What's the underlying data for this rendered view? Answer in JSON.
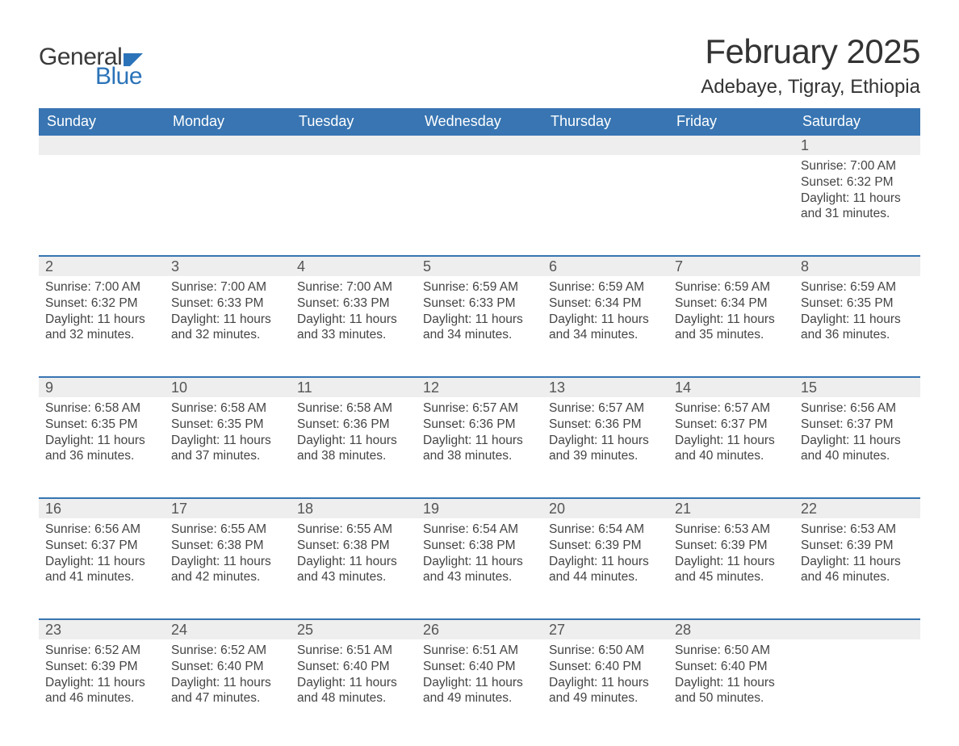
{
  "brand": {
    "word1": "General",
    "word2": "Blue",
    "shape_color": "#2b73b9",
    "text_color_dark": "#3a3a3a",
    "text_color_blue": "#2b73b9"
  },
  "title": {
    "month": "February 2025",
    "location": "Adebaye, Tigray, Ethiopia",
    "month_fontsize": 42,
    "location_fontsize": 24
  },
  "colors": {
    "header_bg": "#3875b2",
    "header_text": "#ffffff",
    "daynum_bg": "#eeeeee",
    "border": "#3875b2",
    "body_text": "#444444"
  },
  "weekdays": [
    "Sunday",
    "Monday",
    "Tuesday",
    "Wednesday",
    "Thursday",
    "Friday",
    "Saturday"
  ],
  "weeks": [
    [
      null,
      null,
      null,
      null,
      null,
      null,
      {
        "n": "1",
        "sr": "Sunrise: 7:00 AM",
        "ss": "Sunset: 6:32 PM",
        "dl": "Daylight: 11 hours and 31 minutes."
      }
    ],
    [
      {
        "n": "2",
        "sr": "Sunrise: 7:00 AM",
        "ss": "Sunset: 6:32 PM",
        "dl": "Daylight: 11 hours and 32 minutes."
      },
      {
        "n": "3",
        "sr": "Sunrise: 7:00 AM",
        "ss": "Sunset: 6:33 PM",
        "dl": "Daylight: 11 hours and 32 minutes."
      },
      {
        "n": "4",
        "sr": "Sunrise: 7:00 AM",
        "ss": "Sunset: 6:33 PM",
        "dl": "Daylight: 11 hours and 33 minutes."
      },
      {
        "n": "5",
        "sr": "Sunrise: 6:59 AM",
        "ss": "Sunset: 6:33 PM",
        "dl": "Daylight: 11 hours and 34 minutes."
      },
      {
        "n": "6",
        "sr": "Sunrise: 6:59 AM",
        "ss": "Sunset: 6:34 PM",
        "dl": "Daylight: 11 hours and 34 minutes."
      },
      {
        "n": "7",
        "sr": "Sunrise: 6:59 AM",
        "ss": "Sunset: 6:34 PM",
        "dl": "Daylight: 11 hours and 35 minutes."
      },
      {
        "n": "8",
        "sr": "Sunrise: 6:59 AM",
        "ss": "Sunset: 6:35 PM",
        "dl": "Daylight: 11 hours and 36 minutes."
      }
    ],
    [
      {
        "n": "9",
        "sr": "Sunrise: 6:58 AM",
        "ss": "Sunset: 6:35 PM",
        "dl": "Daylight: 11 hours and 36 minutes."
      },
      {
        "n": "10",
        "sr": "Sunrise: 6:58 AM",
        "ss": "Sunset: 6:35 PM",
        "dl": "Daylight: 11 hours and 37 minutes."
      },
      {
        "n": "11",
        "sr": "Sunrise: 6:58 AM",
        "ss": "Sunset: 6:36 PM",
        "dl": "Daylight: 11 hours and 38 minutes."
      },
      {
        "n": "12",
        "sr": "Sunrise: 6:57 AM",
        "ss": "Sunset: 6:36 PM",
        "dl": "Daylight: 11 hours and 38 minutes."
      },
      {
        "n": "13",
        "sr": "Sunrise: 6:57 AM",
        "ss": "Sunset: 6:36 PM",
        "dl": "Daylight: 11 hours and 39 minutes."
      },
      {
        "n": "14",
        "sr": "Sunrise: 6:57 AM",
        "ss": "Sunset: 6:37 PM",
        "dl": "Daylight: 11 hours and 40 minutes."
      },
      {
        "n": "15",
        "sr": "Sunrise: 6:56 AM",
        "ss": "Sunset: 6:37 PM",
        "dl": "Daylight: 11 hours and 40 minutes."
      }
    ],
    [
      {
        "n": "16",
        "sr": "Sunrise: 6:56 AM",
        "ss": "Sunset: 6:37 PM",
        "dl": "Daylight: 11 hours and 41 minutes."
      },
      {
        "n": "17",
        "sr": "Sunrise: 6:55 AM",
        "ss": "Sunset: 6:38 PM",
        "dl": "Daylight: 11 hours and 42 minutes."
      },
      {
        "n": "18",
        "sr": "Sunrise: 6:55 AM",
        "ss": "Sunset: 6:38 PM",
        "dl": "Daylight: 11 hours and 43 minutes."
      },
      {
        "n": "19",
        "sr": "Sunrise: 6:54 AM",
        "ss": "Sunset: 6:38 PM",
        "dl": "Daylight: 11 hours and 43 minutes."
      },
      {
        "n": "20",
        "sr": "Sunrise: 6:54 AM",
        "ss": "Sunset: 6:39 PM",
        "dl": "Daylight: 11 hours and 44 minutes."
      },
      {
        "n": "21",
        "sr": "Sunrise: 6:53 AM",
        "ss": "Sunset: 6:39 PM",
        "dl": "Daylight: 11 hours and 45 minutes."
      },
      {
        "n": "22",
        "sr": "Sunrise: 6:53 AM",
        "ss": "Sunset: 6:39 PM",
        "dl": "Daylight: 11 hours and 46 minutes."
      }
    ],
    [
      {
        "n": "23",
        "sr": "Sunrise: 6:52 AM",
        "ss": "Sunset: 6:39 PM",
        "dl": "Daylight: 11 hours and 46 minutes."
      },
      {
        "n": "24",
        "sr": "Sunrise: 6:52 AM",
        "ss": "Sunset: 6:40 PM",
        "dl": "Daylight: 11 hours and 47 minutes."
      },
      {
        "n": "25",
        "sr": "Sunrise: 6:51 AM",
        "ss": "Sunset: 6:40 PM",
        "dl": "Daylight: 11 hours and 48 minutes."
      },
      {
        "n": "26",
        "sr": "Sunrise: 6:51 AM",
        "ss": "Sunset: 6:40 PM",
        "dl": "Daylight: 11 hours and 49 minutes."
      },
      {
        "n": "27",
        "sr": "Sunrise: 6:50 AM",
        "ss": "Sunset: 6:40 PM",
        "dl": "Daylight: 11 hours and 49 minutes."
      },
      {
        "n": "28",
        "sr": "Sunrise: 6:50 AM",
        "ss": "Sunset: 6:40 PM",
        "dl": "Daylight: 11 hours and 50 minutes."
      },
      null
    ]
  ]
}
